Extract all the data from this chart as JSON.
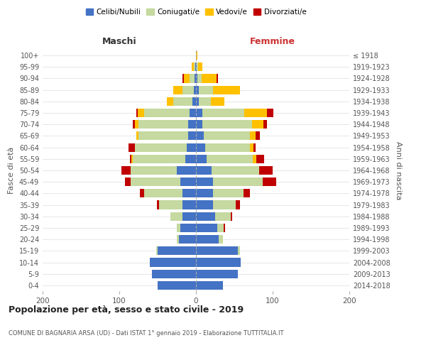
{
  "age_groups": [
    "0-4",
    "5-9",
    "10-14",
    "15-19",
    "20-24",
    "25-29",
    "30-34",
    "35-39",
    "40-44",
    "45-49",
    "50-54",
    "55-59",
    "60-64",
    "65-69",
    "70-74",
    "75-79",
    "80-84",
    "85-89",
    "90-94",
    "95-99",
    "100+"
  ],
  "birth_years": [
    "2014-2018",
    "2009-2013",
    "2004-2008",
    "1999-2003",
    "1994-1998",
    "1989-1993",
    "1984-1988",
    "1979-1983",
    "1974-1978",
    "1969-1973",
    "1964-1968",
    "1959-1963",
    "1954-1958",
    "1949-1953",
    "1944-1948",
    "1939-1943",
    "1934-1938",
    "1929-1933",
    "1924-1928",
    "1919-1923",
    "≤ 1918"
  ],
  "male_celibi": [
    50,
    57,
    60,
    50,
    22,
    20,
    18,
    18,
    18,
    20,
    25,
    14,
    12,
    10,
    10,
    8,
    5,
    3,
    2,
    1,
    0
  ],
  "male_coniugati": [
    0,
    0,
    0,
    2,
    3,
    5,
    15,
    30,
    50,
    65,
    60,
    68,
    68,
    65,
    65,
    60,
    25,
    15,
    6,
    2,
    0
  ],
  "male_vedovi": [
    0,
    0,
    0,
    0,
    0,
    0,
    0,
    0,
    0,
    0,
    0,
    2,
    0,
    3,
    5,
    8,
    8,
    12,
    8,
    3,
    0
  ],
  "male_divorziati": [
    0,
    0,
    0,
    0,
    0,
    0,
    0,
    3,
    5,
    8,
    12,
    2,
    8,
    0,
    2,
    2,
    0,
    0,
    2,
    0,
    0
  ],
  "female_celibi": [
    35,
    55,
    58,
    55,
    30,
    28,
    25,
    22,
    22,
    22,
    20,
    14,
    12,
    10,
    8,
    8,
    4,
    4,
    2,
    1,
    0
  ],
  "female_coniugati": [
    0,
    0,
    0,
    2,
    5,
    8,
    20,
    30,
    40,
    65,
    62,
    60,
    58,
    60,
    65,
    55,
    15,
    18,
    5,
    2,
    0
  ],
  "female_vedovi": [
    0,
    0,
    0,
    0,
    0,
    0,
    0,
    0,
    0,
    0,
    0,
    5,
    5,
    8,
    15,
    30,
    18,
    35,
    20,
    5,
    2
  ],
  "female_divorziati": [
    0,
    0,
    0,
    0,
    0,
    2,
    2,
    5,
    8,
    18,
    18,
    10,
    3,
    5,
    5,
    8,
    0,
    0,
    2,
    0,
    0
  ],
  "colors": {
    "celibi": "#4472c4",
    "coniugati": "#c5d9a0",
    "vedovi": "#ffc000",
    "divorziati": "#c00000"
  },
  "title": "Popolazione per età, sesso e stato civile - 2019",
  "subtitle": "COMUNE DI BAGNARIA ARSA (UD) - Dati ISTAT 1° gennaio 2019 - Elaborazione TUTTITALIA.IT",
  "xlabel_left": "Maschi",
  "xlabel_right": "Femmine",
  "ylabel_left": "Fasce di età",
  "ylabel_right": "Anni di nascita",
  "xlim": 200,
  "legend_labels": [
    "Celibi/Nubili",
    "Coniugati/e",
    "Vedovi/e",
    "Divorziati/e"
  ],
  "background_color": "#ffffff",
  "bar_height": 0.75
}
